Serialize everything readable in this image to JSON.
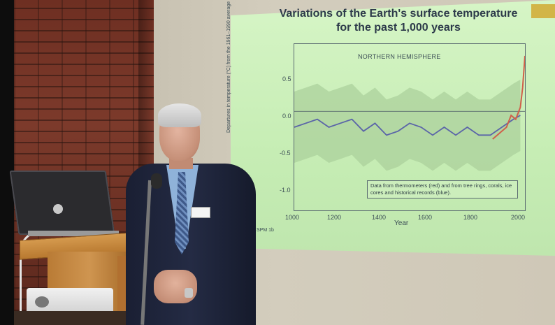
{
  "slide": {
    "title_line1": "Variations of the Earth's surface temperature",
    "title_line2": "for the past 1,000 years",
    "hemisphere_label": "NORTHERN HEMISPHERE",
    "y_axis_label": "Departures in temperature (°C) from the 1961–1990 average",
    "x_axis_label": "Year",
    "y_ticks": [
      "0.5",
      "0.0",
      "-0.5",
      "-1.0"
    ],
    "x_ticks": [
      "1000",
      "1200",
      "1400",
      "1600",
      "1800",
      "2000"
    ],
    "legend_text": "Data from thermometers (red) and from tree rings, corals, ice cores and historical records (blue).",
    "source_tag": "SPM 1b"
  },
  "chart_data": {
    "type": "line",
    "title": "Variations of the Earth's surface temperature for the past 1,000 years",
    "subtitle": "NORTHERN HEMISPHERE",
    "xlabel": "Year",
    "ylabel": "Departures in temperature (°C) from the 1961–1990 average",
    "xlim": [
      1000,
      2000
    ],
    "ylim": [
      -1.25,
      0.85
    ],
    "series": [
      {
        "name": "tree rings, corals, ice cores and historical records (blue)",
        "color": "#5a64a8",
        "x": [
          1000,
          1050,
          1100,
          1150,
          1200,
          1250,
          1300,
          1350,
          1400,
          1450,
          1500,
          1550,
          1600,
          1650,
          1700,
          1750,
          1800,
          1850,
          1900,
          1950,
          1980
        ],
        "y": [
          -0.2,
          -0.15,
          -0.1,
          -0.2,
          -0.15,
          -0.1,
          -0.25,
          -0.15,
          -0.3,
          -0.25,
          -0.15,
          -0.2,
          -0.3,
          -0.2,
          -0.3,
          -0.2,
          -0.3,
          -0.3,
          -0.2,
          -0.1,
          -0.05
        ]
      },
      {
        "name": "thermometers (red)",
        "color": "#d0604a",
        "x": [
          1860,
          1880,
          1900,
          1920,
          1940,
          1960,
          1980,
          1990,
          2000
        ],
        "y": [
          -0.35,
          -0.3,
          -0.25,
          -0.2,
          -0.05,
          -0.1,
          0.05,
          0.3,
          0.7
        ]
      }
    ],
    "legend_position": "bottom-right",
    "band_color": "#a9cf9a"
  }
}
